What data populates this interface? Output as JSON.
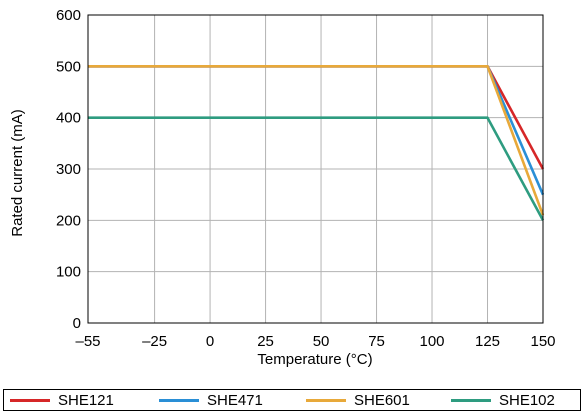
{
  "chart_data": {
    "type": "line",
    "xlabel": "Temperature (°C)",
    "ylabel": "Rated current (mA)",
    "xlim": [
      -55,
      150
    ],
    "ylim": [
      0,
      600
    ],
    "x_ticks": [
      -55,
      -25,
      0,
      25,
      50,
      75,
      100,
      125,
      150
    ],
    "x_tick_labels": [
      "–55",
      "–25",
      "0",
      "25",
      "50",
      "75",
      "100",
      "125",
      "150"
    ],
    "y_ticks": [
      0,
      100,
      200,
      300,
      400,
      500,
      600
    ],
    "y_tick_labels": [
      "0",
      "100",
      "200",
      "300",
      "400",
      "500",
      "600"
    ],
    "grid": true,
    "legend_position": "bottom",
    "series": [
      {
        "name": "SHE121",
        "color": "#d62728",
        "x": [
          -55,
          125,
          150
        ],
        "y": [
          500,
          500,
          300
        ]
      },
      {
        "name": "SHE471",
        "color": "#2a8fd6",
        "x": [
          -55,
          125,
          150
        ],
        "y": [
          500,
          500,
          250
        ]
      },
      {
        "name": "SHE601",
        "color": "#e8a93a",
        "x": [
          -55,
          125,
          150
        ],
        "y": [
          500,
          500,
          210
        ]
      },
      {
        "name": "SHE102",
        "color": "#2e9c80",
        "x": [
          -55,
          125,
          150
        ],
        "y": [
          400,
          400,
          200
        ]
      }
    ]
  }
}
